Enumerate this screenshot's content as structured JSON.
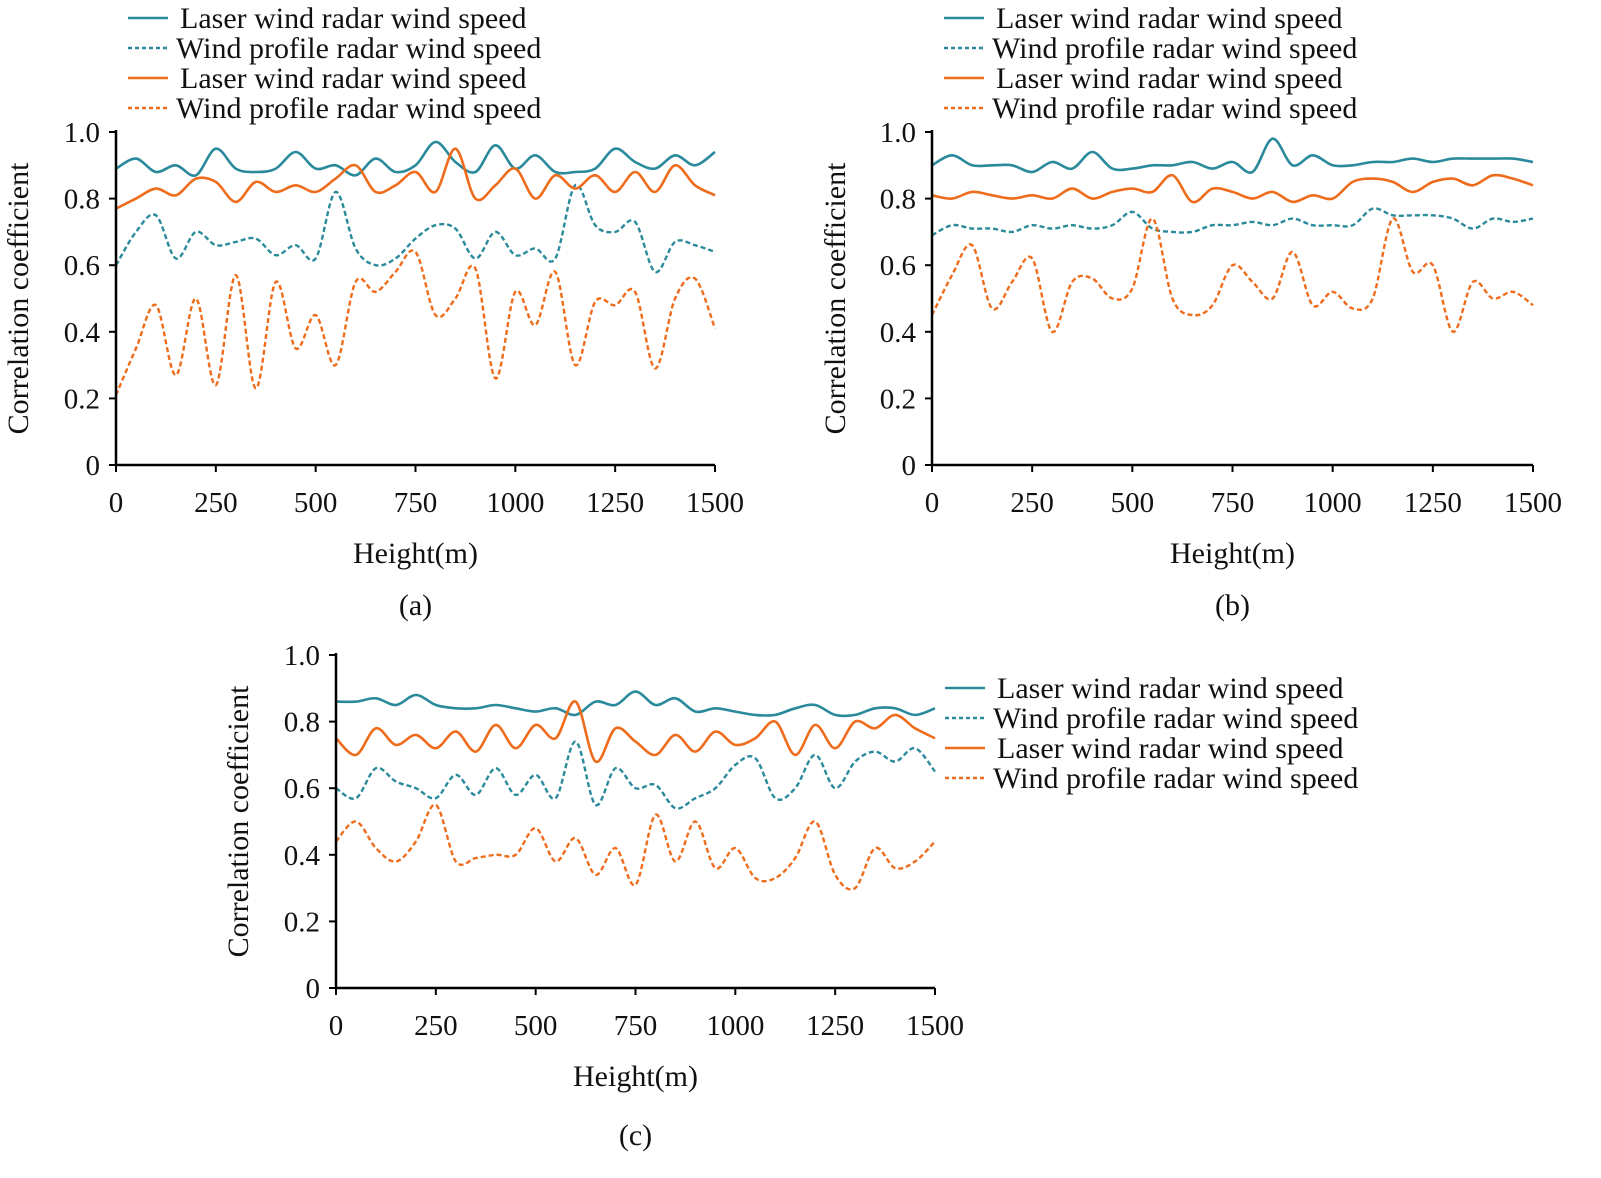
{
  "colors": {
    "teal": "#2a8a9c",
    "orange": "#ee6c1c",
    "axis": "#000000"
  },
  "chart_data": [
    {
      "type": "line",
      "caption": "(a)",
      "xlabel": "Height(m)",
      "ylabel": "Correlation coefficient",
      "xlim": [
        0,
        1500
      ],
      "ylim": [
        0,
        1.0
      ],
      "xticks": [
        "0",
        "250",
        "500",
        "750",
        "1000",
        "1250",
        "1500"
      ],
      "yticks": [
        "0",
        "0.2",
        "0.4",
        "0.6",
        "0.8",
        "1.0"
      ],
      "grid": false,
      "legend_position": "top",
      "x_step": 50,
      "series": [
        {
          "name": "Laser wind radar wind speed",
          "color": "teal",
          "dash": false,
          "values": [
            0.89,
            0.92,
            0.88,
            0.9,
            0.87,
            0.95,
            0.89,
            0.88,
            0.89,
            0.94,
            0.89,
            0.9,
            0.87,
            0.92,
            0.88,
            0.9,
            0.97,
            0.91,
            0.88,
            0.96,
            0.89,
            0.93,
            0.88,
            0.88,
            0.89,
            0.95,
            0.91,
            0.89,
            0.93,
            0.9,
            0.94
          ]
        },
        {
          "name": "Wind profile radar wind speed",
          "color": "teal",
          "dash": true,
          "values": [
            0.6,
            0.7,
            0.75,
            0.62,
            0.7,
            0.66,
            0.67,
            0.68,
            0.63,
            0.66,
            0.62,
            0.82,
            0.65,
            0.6,
            0.62,
            0.68,
            0.72,
            0.71,
            0.62,
            0.7,
            0.63,
            0.65,
            0.62,
            0.84,
            0.72,
            0.7,
            0.73,
            0.58,
            0.67,
            0.66,
            0.64
          ]
        },
        {
          "name": "Laser wind radar wind speed",
          "color": "orange",
          "dash": false,
          "values": [
            0.77,
            0.8,
            0.83,
            0.81,
            0.86,
            0.85,
            0.79,
            0.85,
            0.82,
            0.84,
            0.82,
            0.86,
            0.9,
            0.82,
            0.84,
            0.88,
            0.82,
            0.95,
            0.8,
            0.84,
            0.89,
            0.8,
            0.87,
            0.83,
            0.87,
            0.82,
            0.88,
            0.82,
            0.9,
            0.84,
            0.81
          ]
        },
        {
          "name": "Wind profile radar wind speed",
          "color": "orange",
          "dash": true,
          "values": [
            0.21,
            0.35,
            0.48,
            0.27,
            0.5,
            0.24,
            0.57,
            0.23,
            0.55,
            0.35,
            0.45,
            0.3,
            0.55,
            0.52,
            0.58,
            0.64,
            0.45,
            0.5,
            0.59,
            0.26,
            0.52,
            0.42,
            0.58,
            0.3,
            0.49,
            0.48,
            0.52,
            0.29,
            0.5,
            0.56,
            0.41
          ]
        }
      ]
    },
    {
      "type": "line",
      "caption": "(b)",
      "xlabel": "Height(m)",
      "ylabel": "Correlation coefficient",
      "xlim": [
        0,
        1500
      ],
      "ylim": [
        0,
        1.0
      ],
      "xticks": [
        "0",
        "250",
        "500",
        "750",
        "1000",
        "1250",
        "1500"
      ],
      "yticks": [
        "0",
        "0.2",
        "0.4",
        "0.6",
        "0.8",
        "1.0"
      ],
      "grid": false,
      "legend_position": "top",
      "x_step": 50,
      "series": [
        {
          "name": "Laser wind radar wind speed",
          "color": "teal",
          "dash": false,
          "values": [
            0.9,
            0.93,
            0.9,
            0.9,
            0.9,
            0.88,
            0.91,
            0.89,
            0.94,
            0.89,
            0.89,
            0.9,
            0.9,
            0.91,
            0.89,
            0.91,
            0.88,
            0.98,
            0.9,
            0.93,
            0.9,
            0.9,
            0.91,
            0.91,
            0.92,
            0.91,
            0.92,
            0.92,
            0.92,
            0.92,
            0.91
          ]
        },
        {
          "name": "Wind profile radar wind speed",
          "color": "teal",
          "dash": true,
          "values": [
            0.69,
            0.72,
            0.71,
            0.71,
            0.7,
            0.72,
            0.71,
            0.72,
            0.71,
            0.72,
            0.76,
            0.71,
            0.7,
            0.7,
            0.72,
            0.72,
            0.73,
            0.72,
            0.74,
            0.72,
            0.72,
            0.72,
            0.77,
            0.75,
            0.75,
            0.75,
            0.74,
            0.71,
            0.74,
            0.73,
            0.74
          ]
        },
        {
          "name": "Laser wind radar wind speed",
          "color": "orange",
          "dash": false,
          "values": [
            0.81,
            0.8,
            0.82,
            0.81,
            0.8,
            0.81,
            0.8,
            0.83,
            0.8,
            0.82,
            0.83,
            0.82,
            0.87,
            0.79,
            0.83,
            0.82,
            0.8,
            0.82,
            0.79,
            0.81,
            0.8,
            0.85,
            0.86,
            0.85,
            0.82,
            0.85,
            0.86,
            0.84,
            0.87,
            0.86,
            0.84
          ]
        },
        {
          "name": "Wind profile radar wind speed",
          "color": "orange",
          "dash": true,
          "values": [
            0.45,
            0.57,
            0.66,
            0.47,
            0.55,
            0.62,
            0.4,
            0.55,
            0.56,
            0.5,
            0.53,
            0.74,
            0.5,
            0.45,
            0.48,
            0.6,
            0.55,
            0.5,
            0.64,
            0.48,
            0.52,
            0.47,
            0.5,
            0.74,
            0.58,
            0.6,
            0.4,
            0.55,
            0.5,
            0.52,
            0.48
          ]
        }
      ]
    },
    {
      "type": "line",
      "caption": "(c)",
      "xlabel": "Height(m)",
      "ylabel": "Correlation coefficient",
      "xlim": [
        0,
        1500
      ],
      "ylim": [
        0,
        1.0
      ],
      "xticks": [
        "0",
        "250",
        "500",
        "750",
        "1000",
        "1250",
        "1500"
      ],
      "yticks": [
        "0",
        "0.2",
        "0.4",
        "0.6",
        "0.8",
        "1.0"
      ],
      "grid": false,
      "legend_position": "right",
      "x_step": 50,
      "series": [
        {
          "name": "Laser wind radar wind speed",
          "color": "teal",
          "dash": false,
          "values": [
            0.86,
            0.86,
            0.87,
            0.85,
            0.88,
            0.85,
            0.84,
            0.84,
            0.85,
            0.84,
            0.83,
            0.84,
            0.82,
            0.86,
            0.85,
            0.89,
            0.85,
            0.87,
            0.83,
            0.84,
            0.83,
            0.82,
            0.82,
            0.84,
            0.85,
            0.82,
            0.82,
            0.84,
            0.84,
            0.82,
            0.84
          ]
        },
        {
          "name": "Wind profile radar wind speed",
          "color": "teal",
          "dash": true,
          "values": [
            0.6,
            0.57,
            0.66,
            0.62,
            0.6,
            0.57,
            0.64,
            0.58,
            0.66,
            0.58,
            0.64,
            0.57,
            0.74,
            0.55,
            0.66,
            0.6,
            0.61,
            0.54,
            0.57,
            0.6,
            0.67,
            0.69,
            0.57,
            0.6,
            0.7,
            0.6,
            0.68,
            0.71,
            0.68,
            0.72,
            0.65
          ]
        },
        {
          "name": "Laser wind radar wind speed",
          "color": "orange",
          "dash": false,
          "values": [
            0.75,
            0.7,
            0.78,
            0.73,
            0.76,
            0.72,
            0.77,
            0.71,
            0.79,
            0.72,
            0.79,
            0.75,
            0.86,
            0.68,
            0.78,
            0.74,
            0.7,
            0.76,
            0.71,
            0.77,
            0.73,
            0.75,
            0.8,
            0.7,
            0.79,
            0.72,
            0.8,
            0.78,
            0.82,
            0.78,
            0.75
          ]
        },
        {
          "name": "Wind profile radar wind speed",
          "color": "orange",
          "dash": true,
          "values": [
            0.44,
            0.5,
            0.42,
            0.38,
            0.44,
            0.55,
            0.38,
            0.39,
            0.4,
            0.4,
            0.48,
            0.38,
            0.45,
            0.34,
            0.42,
            0.31,
            0.52,
            0.38,
            0.5,
            0.36,
            0.42,
            0.33,
            0.33,
            0.39,
            0.5,
            0.34,
            0.3,
            0.42,
            0.36,
            0.38,
            0.44
          ]
        }
      ]
    }
  ]
}
